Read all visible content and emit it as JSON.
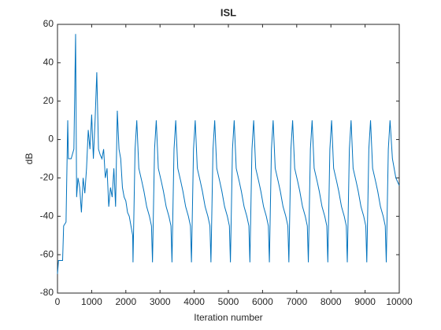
{
  "chart_data": {
    "type": "line",
    "title": "ISL",
    "x_label": "Iteration number",
    "y_label": "dB",
    "color": "#0072bd",
    "xlim": [
      0,
      10000
    ],
    "ylim": [
      -80,
      60
    ],
    "xticks": [
      0,
      1000,
      2000,
      3000,
      4000,
      5000,
      6000,
      7000,
      8000,
      9000,
      10000
    ],
    "yticks": [
      -80,
      -60,
      -40,
      -20,
      0,
      20,
      40,
      60
    ],
    "x": [
      0,
      30,
      150,
      180,
      250,
      300,
      320,
      400,
      480,
      530,
      560,
      600,
      650,
      700,
      750,
      800,
      850,
      900,
      950,
      1000,
      1050,
      1100,
      1150,
      1200,
      1250,
      1300,
      1350,
      1400,
      1450,
      1500,
      1550,
      1600,
      1650,
      1700,
      1750,
      1800,
      1850,
      1900,
      1950,
      2000,
      2050,
      2100,
      2150,
      2200,
      2210,
      2270,
      2320,
      2380,
      2470,
      2530,
      2610,
      2690,
      2750,
      2780,
      2840,
      2890,
      2950,
      3040,
      3100,
      3180,
      3260,
      3320,
      3350,
      3410,
      3460,
      3520,
      3610,
      3670,
      3750,
      3830,
      3890,
      3920,
      3980,
      4030,
      4090,
      4180,
      4240,
      4320,
      4400,
      4460,
      4490,
      4550,
      4600,
      4660,
      4750,
      4810,
      4890,
      4970,
      5030,
      5060,
      5120,
      5170,
      5230,
      5320,
      5380,
      5460,
      5540,
      5600,
      5630,
      5690,
      5740,
      5800,
      5890,
      5950,
      6030,
      6110,
      6170,
      6200,
      6260,
      6310,
      6370,
      6460,
      6520,
      6600,
      6680,
      6740,
      6770,
      6830,
      6880,
      6940,
      7030,
      7090,
      7170,
      7250,
      7310,
      7340,
      7400,
      7450,
      7510,
      7600,
      7660,
      7740,
      7820,
      7880,
      7910,
      7970,
      8020,
      8080,
      8170,
      8230,
      8310,
      8390,
      8450,
      8480,
      8540,
      8590,
      8650,
      8740,
      8800,
      8880,
      8960,
      9020,
      9050,
      9110,
      9160,
      9220,
      9310,
      9370,
      9450,
      9530,
      9590,
      9620,
      9680,
      9730,
      9800,
      9900,
      10000
    ],
    "values": [
      -70,
      -63,
      -63,
      -45,
      -43,
      10,
      -10,
      -10,
      -5,
      55,
      -30,
      -20,
      -25,
      -38,
      -20,
      -28,
      -15,
      5,
      -5,
      13,
      -10,
      10,
      35,
      -5,
      -8,
      -10,
      -5,
      -20,
      -15,
      -35,
      -25,
      -30,
      -15,
      -35,
      15,
      -5,
      -10,
      -25,
      -30,
      -32,
      -38,
      -40,
      -45,
      -50,
      -64,
      -5,
      10,
      -15,
      -22,
      -27,
      -35,
      -40,
      -45,
      -64,
      -5,
      10,
      -15,
      -22,
      -27,
      -35,
      -40,
      -45,
      -64,
      -5,
      10,
      -15,
      -22,
      -27,
      -35,
      -40,
      -45,
      -64,
      -5,
      10,
      -15,
      -22,
      -27,
      -35,
      -40,
      -45,
      -64,
      -5,
      10,
      -15,
      -22,
      -27,
      -35,
      -40,
      -45,
      -64,
      -5,
      10,
      -15,
      -22,
      -27,
      -35,
      -40,
      -45,
      -64,
      -5,
      10,
      -15,
      -22,
      -27,
      -35,
      -40,
      -45,
      -64,
      -5,
      10,
      -15,
      -22,
      -27,
      -35,
      -40,
      -45,
      -64,
      -5,
      10,
      -15,
      -22,
      -27,
      -35,
      -40,
      -45,
      -64,
      -5,
      10,
      -15,
      -22,
      -27,
      -35,
      -40,
      -45,
      -64,
      -5,
      10,
      -15,
      -22,
      -27,
      -35,
      -40,
      -45,
      -64,
      -5,
      10,
      -15,
      -22,
      -27,
      -35,
      -40,
      -45,
      -64,
      -5,
      10,
      -15,
      -22,
      -27,
      -35,
      -40,
      -45,
      -64,
      -5,
      10,
      -10,
      -20,
      -24
    ]
  }
}
